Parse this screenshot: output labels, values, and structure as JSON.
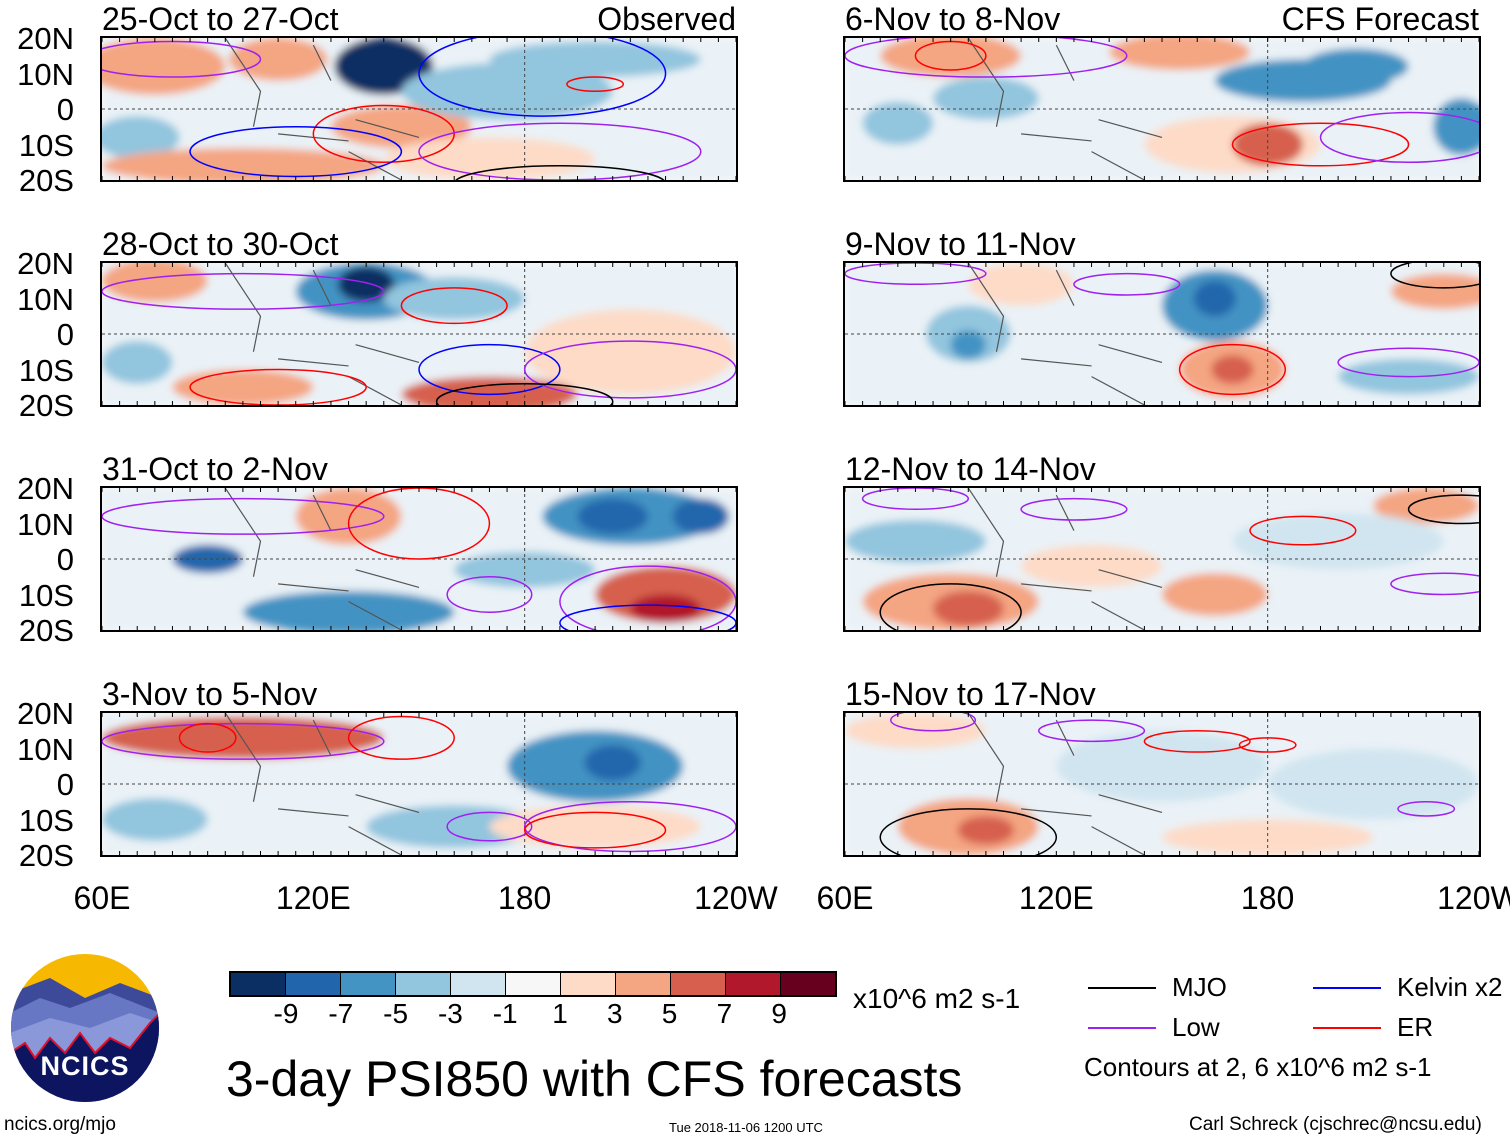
{
  "panels": [
    {
      "title": "25-Oct to 27-Oct",
      "label": "Observed",
      "column": "left"
    },
    {
      "title": "28-Oct to 30-Oct",
      "label": "",
      "column": "left"
    },
    {
      "title": "31-Oct to 2-Nov",
      "label": "",
      "column": "left"
    },
    {
      "title": "3-Nov to 5-Nov",
      "label": "",
      "column": "left"
    },
    {
      "title": "6-Nov to 8-Nov",
      "label": "CFS Forecast",
      "column": "right"
    },
    {
      "title": "9-Nov to 11-Nov",
      "label": "",
      "column": "right"
    },
    {
      "title": "12-Nov to 14-Nov",
      "label": "",
      "column": "right"
    },
    {
      "title": "15-Nov to 17-Nov",
      "label": "",
      "column": "right"
    }
  ],
  "y_ticks": [
    "20N",
    "10N",
    "0",
    "10S",
    "20S"
  ],
  "x_ticks": [
    "60E",
    "120E",
    "180",
    "120W"
  ],
  "colorbar": {
    "colors": [
      "#0b2f62",
      "#2166ac",
      "#4393c3",
      "#92c5de",
      "#d1e5f0",
      "#f7f7f7",
      "#fddbc7",
      "#f4a582",
      "#d6604d",
      "#b2182b",
      "#67001f"
    ],
    "labels": [
      "-9",
      "-7",
      "-5",
      "-3",
      "-1",
      "1",
      "3",
      "5",
      "7",
      "9"
    ],
    "units": "x10^6 m2 s-1"
  },
  "legend": {
    "items": [
      {
        "label": "MJO",
        "color": "#000000"
      },
      {
        "label": "Kelvin x2",
        "color": "#0000ff"
      },
      {
        "label": "Low",
        "color": "#a020f0"
      },
      {
        "label": "ER",
        "color": "#ff0000"
      }
    ],
    "contours_note": "Contours at 2, 6 x10^6 m2 s-1"
  },
  "title": "3-day PSI850 with CFS forecasts",
  "footer": {
    "url": "ncics.org/mjo",
    "timestamp": "Tue 2018-11-06 1200 UTC",
    "author": "Carl Schreck (cjschrec@ncsu.edu)"
  },
  "logo": {
    "text": "NCICS"
  }
}
